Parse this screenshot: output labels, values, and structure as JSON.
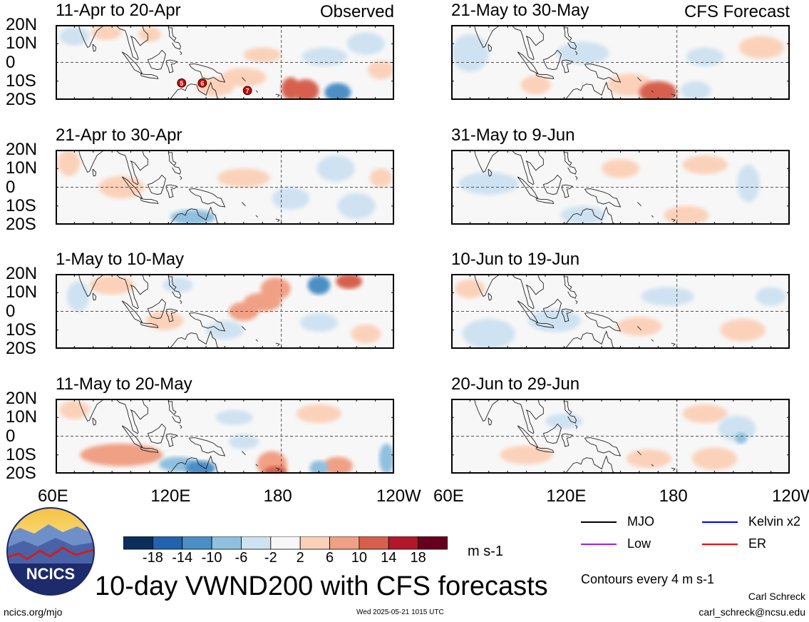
{
  "main_title": "10-day VWND200 with CFS forecasts",
  "units": "m s-1",
  "contour_note": "Contours every 4 m s-1",
  "author": "Carl Schreck",
  "email": "carl_schreck@ncsu.edu",
  "footer_url": "ncics.org/mjo",
  "footer_date": "Wed 2025-05-21 1015 UTC",
  "logo_text": "NCICS",
  "corner_labels": {
    "observed": "Observed",
    "forecast": "CFS Forecast"
  },
  "lat_labels": [
    "20N",
    "10N",
    "0",
    "10S",
    "20S"
  ],
  "lon_labels": [
    "60E",
    "120E",
    "180",
    "120W"
  ],
  "colors": {
    "colorbar": [
      "#0b2e5a",
      "#2163ae",
      "#4b8fc6",
      "#8fc0df",
      "#cfe2f1",
      "#f7f7f7",
      "#fbd1ba",
      "#f0a084",
      "#d6604d",
      "#b2182b",
      "#67001f"
    ],
    "mjo": "#000000",
    "kelvin": "#0000ff",
    "low": "#a020f0",
    "er": "#ff0000",
    "land_outline": "#222222",
    "storm_marker": "#cc0000"
  },
  "legend": [
    {
      "label": "MJO",
      "color": "#000000"
    },
    {
      "label": "Kelvin x2",
      "color": "#0000ff"
    },
    {
      "label": "Low",
      "color": "#a020f0"
    },
    {
      "label": "ER",
      "color": "#ff0000"
    }
  ],
  "chart_data": {
    "type": "heatmap",
    "variable": "VWND200",
    "x_axis": {
      "labels": [
        "60E",
        "120E",
        "180",
        "120W"
      ],
      "range_deg_east": [
        60,
        240
      ]
    },
    "y_axis": {
      "labels": [
        "20N",
        "10N",
        "0",
        "10S",
        "20S"
      ],
      "range_deg": [
        -20,
        20
      ]
    },
    "colorbar": {
      "ticks": [
        -18,
        -14,
        -10,
        -6,
        -2,
        2,
        6,
        10,
        14,
        18
      ],
      "units": "m s-1"
    },
    "contour_interval": 4,
    "panels": [
      {
        "title": "11-Apr to 20-Apr",
        "kind": "observed",
        "column": 0,
        "row": 0,
        "blobs": [
          {
            "lon": 145,
            "lat": -13,
            "rx": 10,
            "ry": 5,
            "value": 4
          },
          {
            "lon": 185,
            "lat": -14,
            "rx": 5,
            "ry": 6,
            "value": 12
          },
          {
            "lon": 193,
            "lat": -15,
            "rx": 7,
            "ry": 6,
            "value": 10
          },
          {
            "lon": 210,
            "lat": -16,
            "rx": 7,
            "ry": 5,
            "value": -12
          },
          {
            "lon": 203,
            "lat": 3,
            "rx": 12,
            "ry": 5,
            "value": -4
          },
          {
            "lon": 87,
            "lat": 16,
            "rx": 8,
            "ry": 4,
            "value": 5
          },
          {
            "lon": 70,
            "lat": 14,
            "rx": 8,
            "ry": 5,
            "value": -5
          },
          {
            "lon": 170,
            "lat": 4,
            "rx": 10,
            "ry": 4,
            "value": 5
          },
          {
            "lon": 225,
            "lat": 10,
            "rx": 10,
            "ry": 6,
            "value": -4
          },
          {
            "lon": 233,
            "lat": -4,
            "rx": 7,
            "ry": 5,
            "value": 4
          },
          {
            "lon": 110,
            "lat": 15,
            "rx": 6,
            "ry": 4,
            "value": 4
          },
          {
            "lon": 160,
            "lat": -8,
            "rx": 12,
            "ry": 5,
            "value": 4
          }
        ],
        "markers": [
          {
            "lon": 127,
            "lat": -11,
            "label": "5"
          },
          {
            "lon": 138,
            "lat": -11,
            "label": "6"
          },
          {
            "lon": 162,
            "lat": -15,
            "label": "7"
          }
        ]
      },
      {
        "title": "21-Apr to 30-Apr",
        "kind": "observed",
        "column": 0,
        "row": 1,
        "blobs": [
          {
            "lon": 133,
            "lat": -16,
            "rx": 12,
            "ry": 4,
            "value": -8
          },
          {
            "lon": 67,
            "lat": 13,
            "rx": 6,
            "ry": 7,
            "value": 4
          },
          {
            "lon": 160,
            "lat": 5,
            "rx": 14,
            "ry": 5,
            "value": 4
          },
          {
            "lon": 185,
            "lat": -6,
            "rx": 10,
            "ry": 6,
            "value": -4
          },
          {
            "lon": 209,
            "lat": 10,
            "rx": 10,
            "ry": 7,
            "value": -4
          },
          {
            "lon": 220,
            "lat": -10,
            "rx": 10,
            "ry": 7,
            "value": -4
          },
          {
            "lon": 95,
            "lat": 0,
            "rx": 12,
            "ry": 6,
            "value": 4
          },
          {
            "lon": 233,
            "lat": 5,
            "rx": 6,
            "ry": 5,
            "value": 4
          }
        ],
        "markers": []
      },
      {
        "title": "1-May to 10-May",
        "kind": "observed",
        "column": 0,
        "row": 2,
        "blobs": [
          {
            "lon": 90,
            "lat": 14,
            "rx": 12,
            "ry": 5,
            "value": 5
          },
          {
            "lon": 200,
            "lat": 14,
            "rx": 6,
            "ry": 5,
            "value": -14
          },
          {
            "lon": 216,
            "lat": 16,
            "rx": 7,
            "ry": 4,
            "value": 12
          },
          {
            "lon": 170,
            "lat": 5,
            "rx": 10,
            "ry": 5,
            "value": 8
          },
          {
            "lon": 160,
            "lat": 0,
            "rx": 8,
            "ry": 5,
            "value": 6
          },
          {
            "lon": 177,
            "lat": 12,
            "rx": 8,
            "ry": 6,
            "value": 6
          },
          {
            "lon": 125,
            "lat": 14,
            "rx": 8,
            "ry": 4,
            "value": -4
          },
          {
            "lon": 72,
            "lat": 8,
            "rx": 6,
            "ry": 8,
            "value": -4
          },
          {
            "lon": 118,
            "lat": -5,
            "rx": 10,
            "ry": 5,
            "value": 4
          },
          {
            "lon": 150,
            "lat": -10,
            "rx": 10,
            "ry": 5,
            "value": -4
          },
          {
            "lon": 200,
            "lat": -6,
            "rx": 10,
            "ry": 5,
            "value": -4
          },
          {
            "lon": 225,
            "lat": -12,
            "rx": 8,
            "ry": 5,
            "value": 4
          }
        ],
        "markers": []
      },
      {
        "title": "11-May to 20-May",
        "kind": "observed",
        "column": 0,
        "row": 3,
        "blobs": [
          {
            "lon": 137,
            "lat": -17,
            "rx": 8,
            "ry": 4,
            "value": -12
          },
          {
            "lon": 125,
            "lat": -15,
            "rx": 10,
            "ry": 4,
            "value": -8
          },
          {
            "lon": 175,
            "lat": -15,
            "rx": 8,
            "ry": 7,
            "value": 8
          },
          {
            "lon": 177,
            "lat": -19,
            "rx": 6,
            "ry": 3,
            "value": 12
          },
          {
            "lon": 95,
            "lat": -10,
            "rx": 22,
            "ry": 6,
            "value": 6
          },
          {
            "lon": 210,
            "lat": -16,
            "rx": 8,
            "ry": 5,
            "value": 8
          },
          {
            "lon": 236,
            "lat": -12,
            "rx": 4,
            "ry": 8,
            "value": -8
          },
          {
            "lon": 200,
            "lat": -17,
            "rx": 5,
            "ry": 4,
            "value": -10
          },
          {
            "lon": 155,
            "lat": 10,
            "rx": 10,
            "ry": 4,
            "value": -4
          },
          {
            "lon": 70,
            "lat": 14,
            "rx": 8,
            "ry": 5,
            "value": 4
          },
          {
            "lon": 200,
            "lat": 12,
            "rx": 12,
            "ry": 5,
            "value": 4
          },
          {
            "lon": 160,
            "lat": -3,
            "rx": 8,
            "ry": 4,
            "value": -4
          }
        ],
        "markers": []
      },
      {
        "title": "21-May to 30-May",
        "kind": "forecast",
        "column": 1,
        "row": 0,
        "blobs": [
          {
            "lon": 170,
            "lat": -16,
            "rx": 10,
            "ry": 6,
            "value": 10
          },
          {
            "lon": 155,
            "lat": -12,
            "rx": 12,
            "ry": 6,
            "value": 4
          },
          {
            "lon": 190,
            "lat": -15,
            "rx": 8,
            "ry": 5,
            "value": -6
          },
          {
            "lon": 70,
            "lat": 5,
            "rx": 10,
            "ry": 10,
            "value": -4
          },
          {
            "lon": 130,
            "lat": 5,
            "rx": 14,
            "ry": 6,
            "value": -4
          },
          {
            "lon": 225,
            "lat": 8,
            "rx": 12,
            "ry": 6,
            "value": 4
          },
          {
            "lon": 195,
            "lat": 3,
            "rx": 10,
            "ry": 5,
            "value": -4
          },
          {
            "lon": 105,
            "lat": -12,
            "rx": 8,
            "ry": 5,
            "value": 4
          }
        ],
        "markers": []
      },
      {
        "title": "31-May to 9-Jun",
        "kind": "forecast",
        "column": 1,
        "row": 1,
        "blobs": [
          {
            "lon": 80,
            "lat": 2,
            "rx": 16,
            "ry": 6,
            "value": -4
          },
          {
            "lon": 150,
            "lat": 10,
            "rx": 10,
            "ry": 5,
            "value": 4
          },
          {
            "lon": 195,
            "lat": 12,
            "rx": 12,
            "ry": 5,
            "value": 4
          },
          {
            "lon": 218,
            "lat": 2,
            "rx": 6,
            "ry": 10,
            "value": -4
          },
          {
            "lon": 185,
            "lat": -15,
            "rx": 12,
            "ry": 5,
            "value": 4
          },
          {
            "lon": 130,
            "lat": -15,
            "rx": 12,
            "ry": 5,
            "value": -4
          }
        ],
        "markers": []
      },
      {
        "title": "10-Jun to 19-Jun",
        "kind": "forecast",
        "column": 1,
        "row": 2,
        "blobs": [
          {
            "lon": 80,
            "lat": -12,
            "rx": 14,
            "ry": 8,
            "value": -6
          },
          {
            "lon": 115,
            "lat": -5,
            "rx": 14,
            "ry": 6,
            "value": -4
          },
          {
            "lon": 70,
            "lat": 12,
            "rx": 8,
            "ry": 5,
            "value": 4
          },
          {
            "lon": 175,
            "lat": 8,
            "rx": 14,
            "ry": 5,
            "value": -4
          },
          {
            "lon": 160,
            "lat": -8,
            "rx": 12,
            "ry": 5,
            "value": 4
          },
          {
            "lon": 215,
            "lat": -10,
            "rx": 12,
            "ry": 6,
            "value": 4
          },
          {
            "lon": 230,
            "lat": 8,
            "rx": 8,
            "ry": 5,
            "value": -4
          }
        ],
        "markers": []
      },
      {
        "title": "20-Jun to 29-Jun",
        "kind": "forecast",
        "column": 1,
        "row": 3,
        "blobs": [
          {
            "lon": 212,
            "lat": 4,
            "rx": 10,
            "ry": 7,
            "value": -6
          },
          {
            "lon": 214,
            "lat": -1,
            "rx": 3,
            "ry": 3,
            "value": -10
          },
          {
            "lon": 200,
            "lat": -12,
            "rx": 12,
            "ry": 6,
            "value": 4
          },
          {
            "lon": 195,
            "lat": 12,
            "rx": 12,
            "ry": 5,
            "value": 4
          },
          {
            "lon": 165,
            "lat": -12,
            "rx": 12,
            "ry": 5,
            "value": 4
          },
          {
            "lon": 100,
            "lat": -10,
            "rx": 14,
            "ry": 5,
            "value": 4
          },
          {
            "lon": 120,
            "lat": 8,
            "rx": 10,
            "ry": 4,
            "value": -4
          }
        ],
        "markers": []
      }
    ]
  }
}
